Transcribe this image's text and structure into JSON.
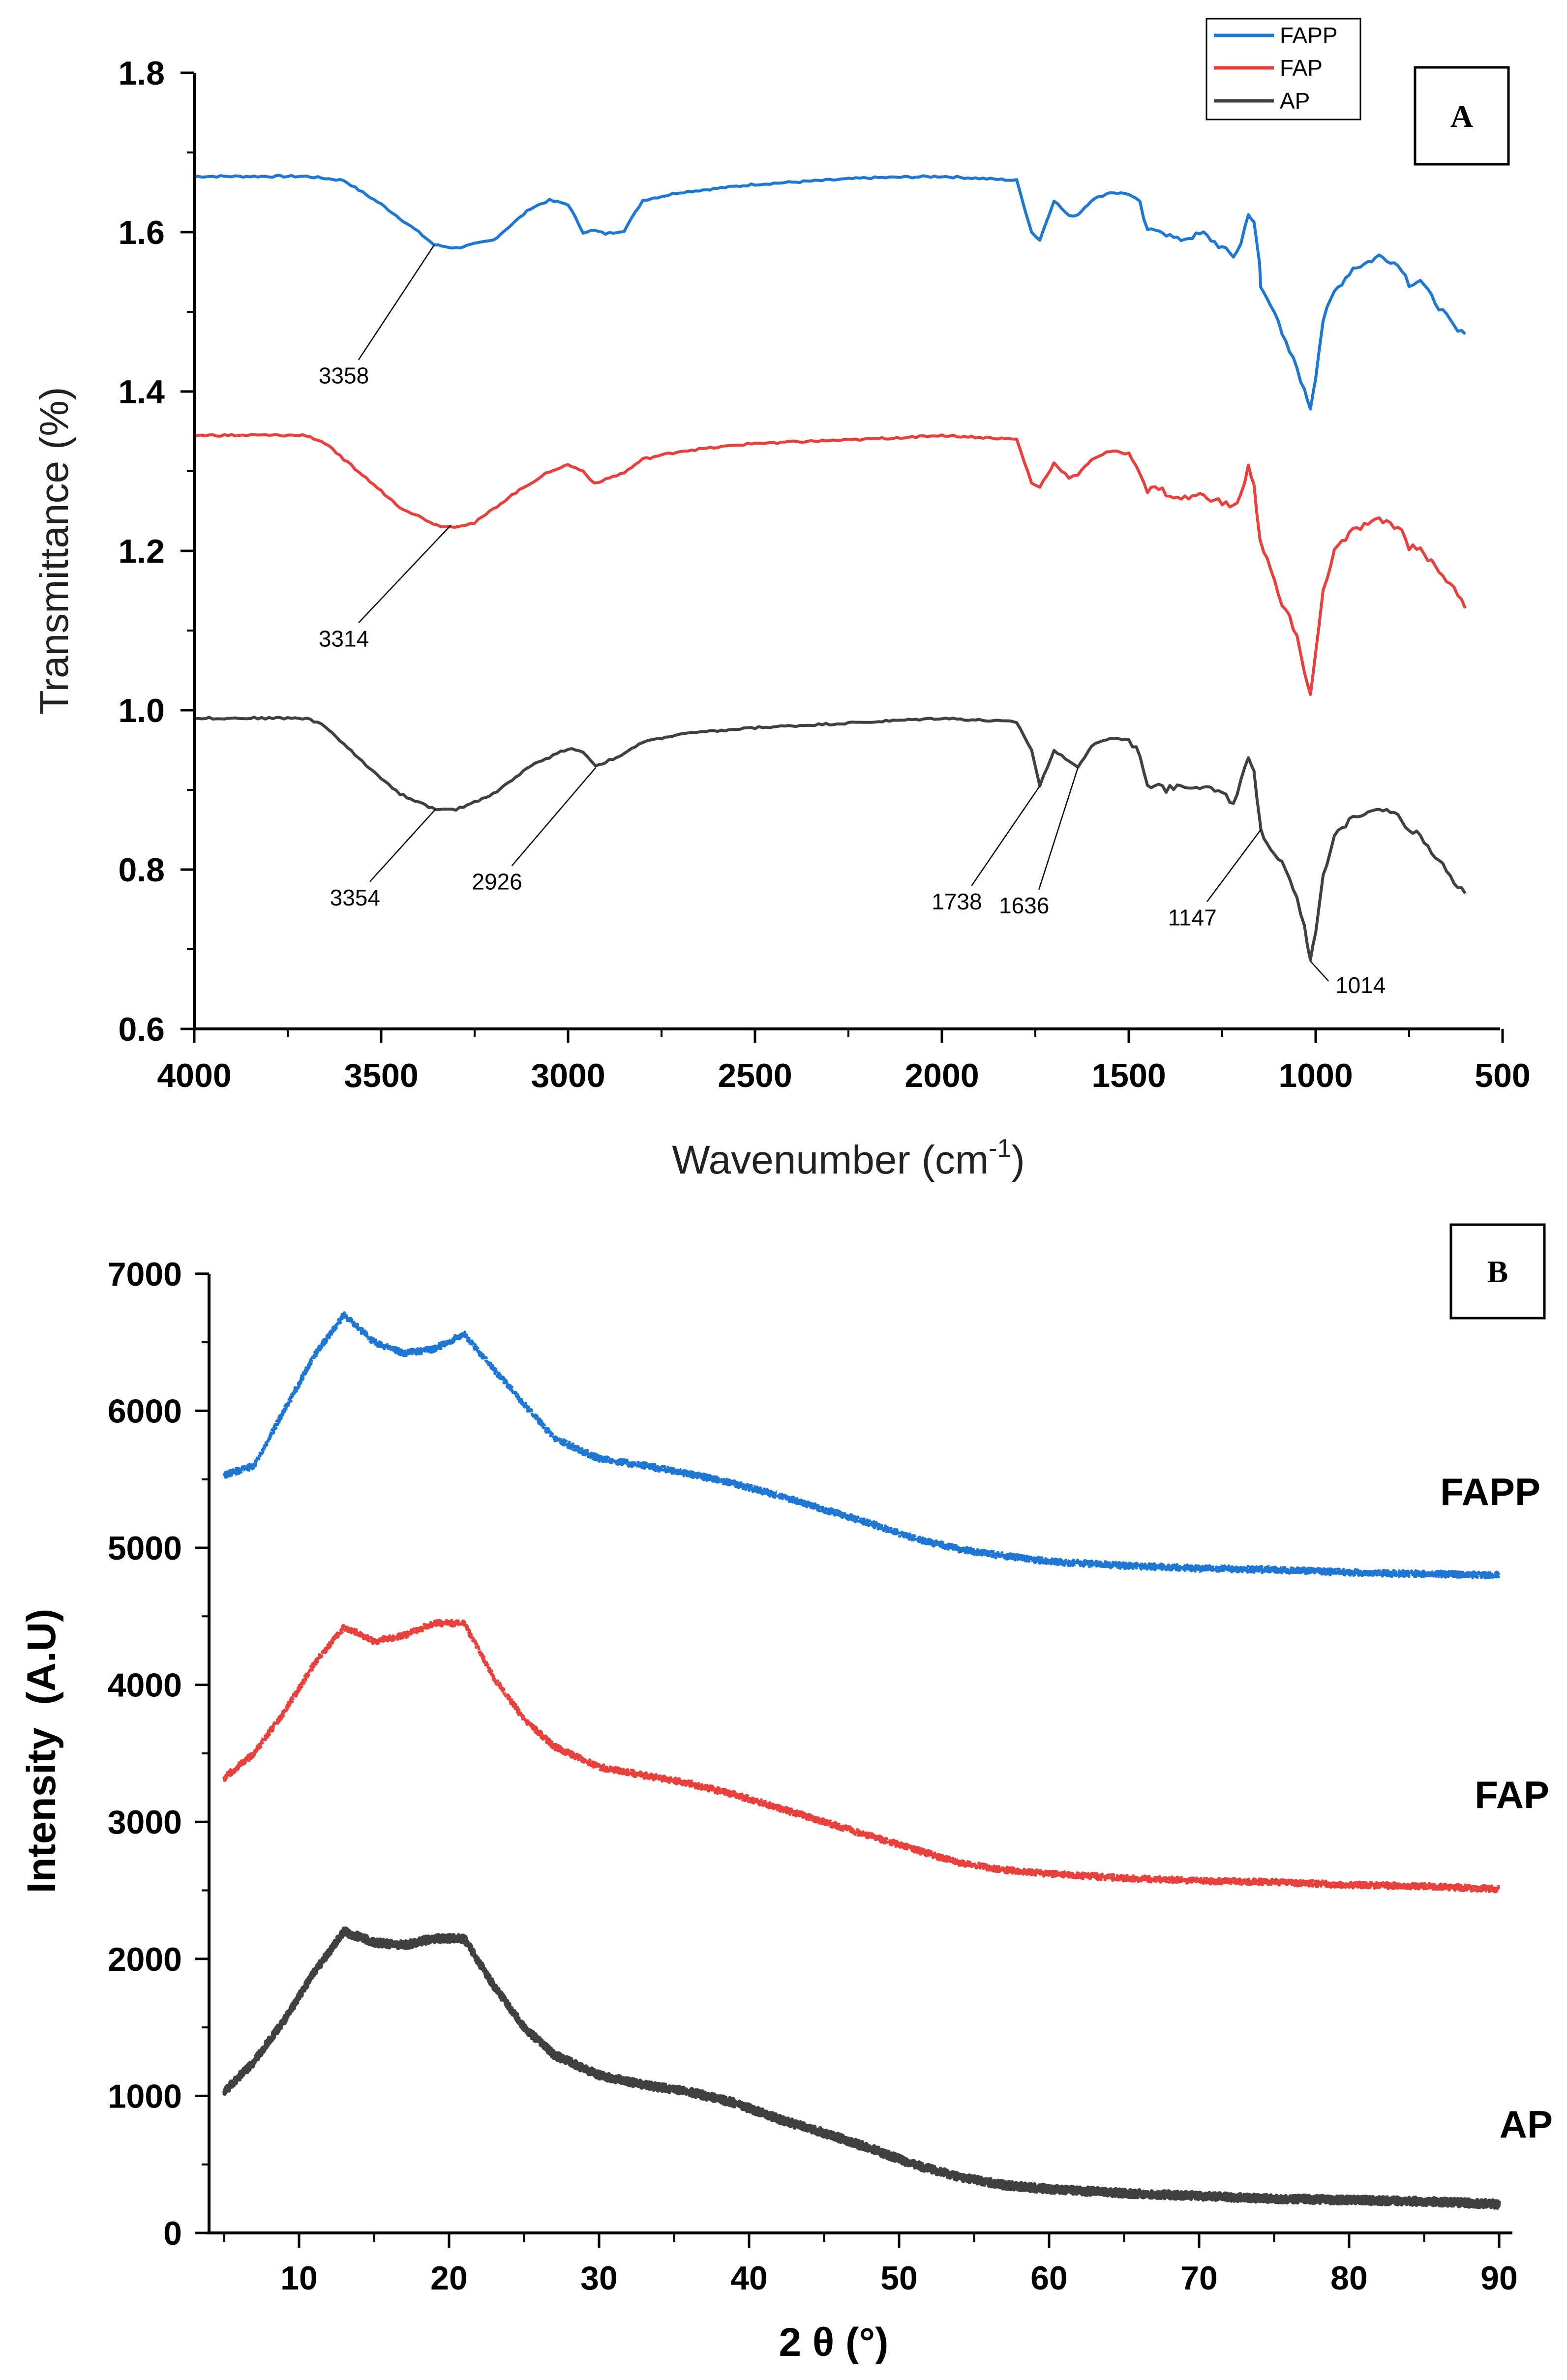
{
  "chart_data": [
    {
      "type": "line",
      "panel": "A",
      "xlabel": "Wavenumber (cm",
      "xlabel_sup": "-1",
      "xlabel_end": ")",
      "ylabel": "Transmittance (%)",
      "xlim": [
        4000,
        500
      ],
      "ylim": [
        0.6,
        1.8
      ],
      "x_ticks": [
        "4000",
        "3500",
        "3000",
        "2500",
        "2000",
        "1500",
        "1000",
        "500"
      ],
      "y_ticks": [
        "0.6",
        "0.8",
        "1.0",
        "1.2",
        "1.4",
        "1.6",
        "1.8"
      ],
      "legend": {
        "position": "top-right",
        "entries": [
          "FAPP",
          "FAP",
          "AP"
        ]
      },
      "series": [
        {
          "name": "FAPP",
          "color": "#1f77d4",
          "x": [
            4000,
            3700,
            3600,
            3500,
            3400,
            3358,
            3300,
            3200,
            3100,
            3050,
            3000,
            2960,
            2930,
            2900,
            2850,
            2800,
            2700,
            2500,
            2200,
            2000,
            1800,
            1760,
            1738,
            1700,
            1660,
            1636,
            1600,
            1550,
            1500,
            1470,
            1450,
            1420,
            1400,
            1370,
            1300,
            1250,
            1220,
            1200,
            1180,
            1165,
            1150,
            1147,
            1130,
            1110,
            1090,
            1070,
            1050,
            1030,
            1014,
            1000,
            980,
            950,
            900,
            870,
            830,
            800,
            770,
            750,
            720,
            700,
            660,
            620,
            600
          ],
          "y": [
            1.67,
            1.67,
            1.665,
            1.635,
            1.6,
            1.584,
            1.58,
            1.59,
            1.63,
            1.64,
            1.635,
            1.6,
            1.602,
            1.598,
            1.602,
            1.64,
            1.65,
            1.66,
            1.668,
            1.67,
            1.665,
            1.6,
            1.59,
            1.64,
            1.62,
            1.622,
            1.64,
            1.65,
            1.648,
            1.635,
            1.6,
            1.605,
            1.598,
            1.59,
            1.598,
            1.58,
            1.57,
            1.585,
            1.625,
            1.61,
            1.56,
            1.53,
            1.52,
            1.5,
            1.47,
            1.45,
            1.43,
            1.4,
            1.38,
            1.42,
            1.49,
            1.525,
            1.555,
            1.56,
            1.57,
            1.565,
            1.555,
            1.535,
            1.54,
            1.525,
            1.5,
            1.475,
            1.472
          ]
        },
        {
          "name": "FAP",
          "color": "#e8403c",
          "x": [
            4000,
            3700,
            3650,
            3550,
            3450,
            3350,
            3314,
            3250,
            3150,
            3050,
            3000,
            2960,
            2930,
            2900,
            2850,
            2800,
            2700,
            2500,
            2200,
            2000,
            1800,
            1760,
            1738,
            1700,
            1660,
            1636,
            1600,
            1550,
            1500,
            1470,
            1450,
            1420,
            1400,
            1370,
            1300,
            1250,
            1220,
            1200,
            1180,
            1165,
            1150,
            1147,
            1130,
            1110,
            1090,
            1070,
            1050,
            1030,
            1014,
            1000,
            980,
            950,
            900,
            870,
            830,
            800,
            770,
            750,
            720,
            700,
            660,
            620,
            600
          ],
          "y": [
            1.345,
            1.345,
            1.335,
            1.295,
            1.255,
            1.232,
            1.23,
            1.235,
            1.27,
            1.3,
            1.308,
            1.3,
            1.285,
            1.29,
            1.298,
            1.315,
            1.325,
            1.335,
            1.34,
            1.345,
            1.34,
            1.285,
            1.28,
            1.31,
            1.292,
            1.295,
            1.315,
            1.325,
            1.322,
            1.3,
            1.275,
            1.28,
            1.272,
            1.265,
            1.27,
            1.26,
            1.255,
            1.27,
            1.305,
            1.28,
            1.22,
            1.21,
            1.19,
            1.16,
            1.13,
            1.12,
            1.09,
            1.05,
            1.02,
            1.07,
            1.15,
            1.2,
            1.225,
            1.232,
            1.238,
            1.235,
            1.225,
            1.205,
            1.205,
            1.19,
            1.17,
            1.145,
            1.128
          ]
        },
        {
          "name": "AP",
          "color": "#404040",
          "x": [
            4000,
            3700,
            3650,
            3550,
            3450,
            3354,
            3300,
            3200,
            3100,
            3000,
            2960,
            2926,
            2900,
            2850,
            2800,
            2700,
            2500,
            2200,
            2000,
            1800,
            1760,
            1738,
            1700,
            1670,
            1636,
            1600,
            1550,
            1500,
            1470,
            1450,
            1420,
            1400,
            1370,
            1300,
            1250,
            1220,
            1200,
            1180,
            1165,
            1150,
            1147,
            1130,
            1110,
            1090,
            1070,
            1050,
            1030,
            1014,
            1000,
            980,
            950,
            900,
            870,
            830,
            800,
            770,
            750,
            720,
            700,
            660,
            620,
            600
          ],
          "y": [
            0.99,
            0.99,
            0.98,
            0.935,
            0.895,
            0.875,
            0.875,
            0.895,
            0.93,
            0.952,
            0.948,
            0.93,
            0.935,
            0.945,
            0.96,
            0.97,
            0.978,
            0.985,
            0.99,
            0.985,
            0.95,
            0.905,
            0.95,
            0.94,
            0.928,
            0.955,
            0.965,
            0.963,
            0.945,
            0.905,
            0.91,
            0.9,
            0.905,
            0.905,
            0.895,
            0.885,
            0.91,
            0.94,
            0.92,
            0.86,
            0.85,
            0.835,
            0.82,
            0.81,
            0.79,
            0.765,
            0.73,
            0.685,
            0.72,
            0.79,
            0.84,
            0.868,
            0.872,
            0.878,
            0.875,
            0.862,
            0.845,
            0.845,
            0.83,
            0.805,
            0.78,
            0.77
          ]
        }
      ],
      "annotations": [
        {
          "text": "3358",
          "x": 3358,
          "y": 1.584,
          "label_x": 3600,
          "label_y": 1.415
        },
        {
          "text": "3314",
          "x": 3314,
          "y": 1.232,
          "label_x": 3600,
          "label_y": 1.085
        },
        {
          "text": "3354",
          "x": 3354,
          "y": 0.876,
          "label_x": 3570,
          "label_y": 0.76
        },
        {
          "text": "2926",
          "x": 2926,
          "y": 0.928,
          "label_x": 3190,
          "label_y": 0.78
        },
        {
          "text": "1738",
          "x": 1738,
          "y": 0.905,
          "label_x": 1960,
          "label_y": 0.755
        },
        {
          "text": "1636",
          "x": 1636,
          "y": 0.928,
          "label_x": 1780,
          "label_y": 0.75
        },
        {
          "text": "1147",
          "x": 1147,
          "y": 0.85,
          "label_x": 1330,
          "label_y": 0.735
        },
        {
          "text": "1014",
          "x": 1014,
          "y": 0.685,
          "label_x": 880,
          "label_y": 0.65
        }
      ]
    },
    {
      "type": "scatter",
      "panel": "B",
      "xlabel": "2 θ (°)",
      "ylabel": "Intensity  (A.U)",
      "xlim": [
        4,
        91
      ],
      "ylim": [
        0,
        7000
      ],
      "x_ticks": [
        "10",
        "20",
        "30",
        "40",
        "50",
        "60",
        "70",
        "80",
        "90"
      ],
      "y_ticks": [
        "0",
        "1000",
        "2000",
        "3000",
        "4000",
        "5000",
        "6000",
        "7000"
      ],
      "series": [
        {
          "name": "FAPP",
          "color": "#1f77d4",
          "x": [
            5,
            7,
            9,
            11,
            13,
            15,
            17,
            19,
            21,
            23,
            25,
            27,
            30,
            33,
            36,
            39,
            42,
            45,
            48,
            51,
            54,
            57,
            60,
            65,
            70,
            75,
            80,
            85,
            90
          ],
          "y": [
            5530,
            5600,
            6000,
            6400,
            6700,
            6500,
            6420,
            6450,
            6560,
            6300,
            6050,
            5800,
            5650,
            5600,
            5540,
            5470,
            5380,
            5280,
            5180,
            5070,
            4990,
            4940,
            4900,
            4870,
            4850,
            4840,
            4820,
            4810,
            4800
          ]
        },
        {
          "name": "FAP",
          "color": "#e8403c",
          "x": [
            5,
            7,
            9,
            11,
            13,
            15,
            17,
            19,
            21,
            23,
            25,
            27,
            30,
            33,
            36,
            39,
            42,
            45,
            48,
            51,
            54,
            57,
            60,
            65,
            70,
            75,
            80,
            85,
            90
          ],
          "y": [
            3320,
            3500,
            3800,
            4150,
            4420,
            4320,
            4360,
            4450,
            4450,
            4050,
            3750,
            3550,
            3400,
            3340,
            3280,
            3200,
            3100,
            3000,
            2900,
            2800,
            2700,
            2650,
            2620,
            2590,
            2570,
            2560,
            2540,
            2530,
            2510
          ]
        },
        {
          "name": "AP",
          "color": "#404040",
          "x": [
            5,
            7,
            9,
            11,
            13,
            15,
            17,
            19,
            21,
            23,
            25,
            27,
            30,
            33,
            36,
            39,
            42,
            45,
            48,
            51,
            54,
            57,
            60,
            65,
            70,
            75,
            80,
            85,
            90
          ],
          "y": [
            1030,
            1250,
            1550,
            1900,
            2200,
            2120,
            2100,
            2150,
            2150,
            1800,
            1500,
            1300,
            1150,
            1080,
            1030,
            950,
            830,
            730,
            620,
            500,
            410,
            350,
            320,
            290,
            270,
            250,
            240,
            230,
            210
          ]
        }
      ],
      "series_labels": [
        "FAPP",
        "FAP",
        "AP"
      ]
    }
  ]
}
